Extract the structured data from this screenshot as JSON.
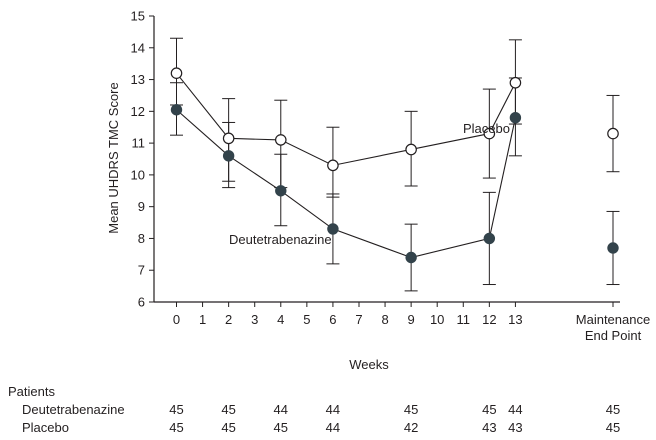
{
  "chart_data": {
    "type": "line",
    "ylabel": "Mean UHDRS TMC Score",
    "xlabel": "Weeks",
    "ylim": [
      6,
      15
    ],
    "yticks": [
      "6",
      "7",
      "8",
      "9",
      "10",
      "11",
      "12",
      "13",
      "14",
      "15"
    ],
    "xticks": [
      "0",
      "1",
      "2",
      "3",
      "4",
      "5",
      "6",
      "7",
      "8",
      "9",
      "10",
      "11",
      "12",
      "13"
    ],
    "endpoint_label": [
      "Maintenance",
      "End Point"
    ],
    "series": [
      {
        "name": "Placebo",
        "marker": "open-circle",
        "x": [
          0,
          2,
          4,
          6,
          9,
          12,
          13
        ],
        "y": [
          13.2,
          11.15,
          11.1,
          10.3,
          10.8,
          11.3,
          12.9
        ],
        "err_low": [
          12.2,
          9.8,
          9.6,
          9.3,
          9.65,
          9.9,
          11.6
        ],
        "err_high": [
          14.3,
          12.4,
          12.35,
          11.5,
          12.0,
          12.7,
          14.25
        ],
        "endpoint": {
          "y": 11.3,
          "err_low": 10.1,
          "err_high": 12.5
        }
      },
      {
        "name": "Deutetrabenazine",
        "marker": "filled-circle",
        "x": [
          0,
          2,
          4,
          6,
          9,
          12,
          13
        ],
        "y": [
          12.05,
          10.6,
          9.5,
          8.3,
          7.4,
          8.0,
          11.8
        ],
        "err_low": [
          11.25,
          9.6,
          8.4,
          7.2,
          6.35,
          6.55,
          10.6
        ],
        "err_high": [
          12.9,
          11.65,
          10.65,
          9.4,
          8.45,
          9.45,
          13.05
        ],
        "endpoint": {
          "y": 7.7,
          "err_low": 6.55,
          "err_high": 8.85
        }
      }
    ],
    "annotations": [
      "Placebo",
      "Deutetrabenazine"
    ],
    "patients_table": {
      "title": "Patients",
      "rows": [
        {
          "label": "Deutetrabenazine",
          "values": [
            "45",
            "45",
            "44",
            "44",
            "45",
            "45",
            "44",
            "45"
          ]
        },
        {
          "label": "Placebo",
          "values": [
            "45",
            "45",
            "45",
            "44",
            "42",
            "43",
            "43",
            "45"
          ]
        }
      ]
    }
  }
}
